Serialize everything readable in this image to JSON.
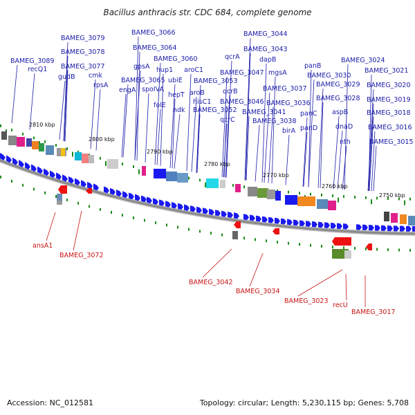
{
  "title": "Bacillus anthracis str. CDC 684, complete genome",
  "footer": {
    "accession": "Accession: NC_012581",
    "topology": "Topology: circular; Length: 5,230,115 bp; Genes: 5,708"
  },
  "ticks": [
    "2810 kbp",
    "2800 kbp",
    "2790 kbp",
    "2780 kbp",
    "2770 kbp",
    "2760 kbp",
    "2750 kbp"
  ],
  "upper_labels": [
    "BAMEG_3089",
    "recQ1",
    "BAMEG_3079",
    "BAMEG_3078",
    "BAMEG_3077",
    "gudB",
    "cmk",
    "rpsA",
    "BAMEG_3066",
    "BAMEG_3064",
    "gpsA",
    "BAMEG_3065",
    "engA",
    "spoIVA",
    "hup1",
    "BAMEG_3060",
    "ubiE",
    "aroC1",
    "folE",
    "hepT",
    "ndk",
    "aroB",
    "BAMEG_3053",
    "hisC1",
    "BAMEG_3052",
    "qcrA",
    "BAMEG_3047",
    "qcrB",
    "qcrC",
    "BAMEG_3046",
    "BAMEG_3044",
    "BAMEG_3043",
    "dapB",
    "mgsA",
    "BAMEG_3041",
    "BAMEG_3037",
    "BAMEG_3036",
    "BAMEG_3038",
    "birA",
    "panB",
    "BAMEG_3030",
    "BAMEG_3029",
    "panC",
    "panD",
    "BAMEG_3028",
    "aspB",
    "dnaD",
    "nth",
    "BAMEG_3024",
    "BAMEG_3021",
    "BAMEG_3020",
    "BAMEG_3019",
    "BAMEG_3018",
    "BAMEG_3016",
    "BAMEG_3015"
  ],
  "lower_labels": [
    "ansA1",
    "BAMEG_3072",
    "BAMEG_3042",
    "BAMEG_3034",
    "BAMEG_3023",
    "recU",
    "BAMEG_3017"
  ],
  "colors": {
    "forward_gene": "#1a1af0",
    "reverse_gene": "#ee1111",
    "backbone": "#8a8a8a",
    "tick_mark": "#1a8a1a",
    "upper_label": "#1a1aa8",
    "lower_label": "#c81414"
  }
}
